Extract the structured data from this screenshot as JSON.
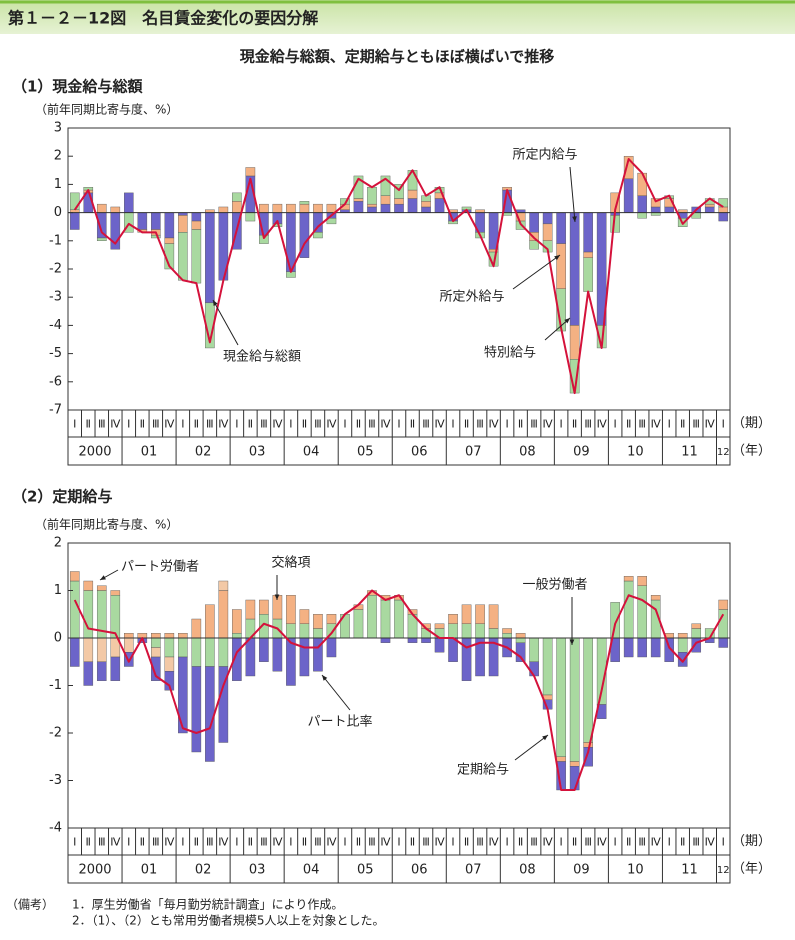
{
  "header": {
    "title": "第１－２－12図　名目賃金変化の要因分解",
    "subtitle": "現金給与総額、定期給与ともほぼ横ばいで推移"
  },
  "chart_data": [
    {
      "type": "bar",
      "stacked": true,
      "title": "（1）現金給与総額",
      "y_label": "（前年同期比寄与度、%）",
      "quarter_unit": "（期）",
      "year_unit": "（年）",
      "categories": [
        "Ⅰ",
        "Ⅱ",
        "Ⅲ",
        "Ⅳ",
        "Ⅰ",
        "Ⅱ",
        "Ⅲ",
        "Ⅳ",
        "Ⅰ",
        "Ⅱ",
        "Ⅲ",
        "Ⅳ",
        "Ⅰ",
        "Ⅱ",
        "Ⅲ",
        "Ⅳ",
        "Ⅰ",
        "Ⅱ",
        "Ⅲ",
        "Ⅳ",
        "Ⅰ",
        "Ⅱ",
        "Ⅲ",
        "Ⅳ",
        "Ⅰ",
        "Ⅱ",
        "Ⅲ",
        "Ⅳ",
        "Ⅰ",
        "Ⅱ",
        "Ⅲ",
        "Ⅳ",
        "Ⅰ",
        "Ⅱ",
        "Ⅲ",
        "Ⅳ",
        "Ⅰ",
        "Ⅱ",
        "Ⅲ",
        "Ⅳ",
        "Ⅰ",
        "Ⅱ",
        "Ⅲ",
        "Ⅳ",
        "Ⅰ",
        "Ⅱ",
        "Ⅲ",
        "Ⅳ",
        "Ⅰ"
      ],
      "years": [
        "2000",
        "01",
        "02",
        "03",
        "04",
        "05",
        "06",
        "07",
        "08",
        "09",
        "10",
        "11",
        "12"
      ],
      "ylim": [
        -7,
        3
      ],
      "yticks": [
        3,
        2,
        1,
        0,
        -1,
        -2,
        -3,
        -4,
        -5,
        -6,
        -7
      ],
      "series": [
        {
          "name": "所定内給与",
          "type": "bar",
          "color": "#6c64c9",
          "values": [
            -0.6,
            0.7,
            -0.9,
            -1.3,
            0.7,
            -0.6,
            -0.6,
            -0.9,
            -0.1,
            -0.3,
            -3.2,
            -2.4,
            -1.3,
            1.3,
            -0.8,
            -0.4,
            -2.1,
            -1.6,
            -0.7,
            -0.2,
            0.1,
            0.4,
            0.2,
            0.3,
            0.3,
            0.5,
            0.2,
            0.5,
            -0.3,
            0.1,
            -0.7,
            -1.3,
            0.8,
            0.1,
            -0.7,
            -0.4,
            -1.1,
            -4.0,
            -1.4,
            -4.0,
            -0.1,
            1.2,
            0.6,
            0.2,
            0.2,
            -0.2,
            0.2,
            0.2,
            -0.3
          ]
        },
        {
          "name": "所定外給与",
          "type": "bar",
          "color": "#f4b183",
          "values": [
            0.1,
            0.1,
            0.3,
            0.2,
            0.0,
            -0.1,
            -0.2,
            -0.2,
            -0.6,
            -0.3,
            0.1,
            0.2,
            0.4,
            0.3,
            0.3,
            0.3,
            0.3,
            0.3,
            0.3,
            0.3,
            0.2,
            0.1,
            0.1,
            0.3,
            0.2,
            0.3,
            0.2,
            0.2,
            0.1,
            0.0,
            0.1,
            -0.1,
            0.1,
            -0.3,
            -0.3,
            -0.6,
            -1.6,
            -1.2,
            -0.2,
            0.0,
            0.7,
            0.8,
            0.8,
            0.3,
            0.3,
            0.1,
            0.0,
            0.1,
            0.2
          ]
        },
        {
          "name": "特別給与",
          "type": "bar",
          "color": "#a9d9a0",
          "values": [
            0.6,
            0.1,
            -0.1,
            0.0,
            -0.7,
            0.0,
            -0.1,
            -0.9,
            -1.7,
            -1.9,
            -1.6,
            0.0,
            0.3,
            -0.3,
            -0.3,
            -0.1,
            -0.2,
            0.1,
            -0.2,
            -0.2,
            0.2,
            0.8,
            0.6,
            0.7,
            0.5,
            0.7,
            0.2,
            0.2,
            -0.1,
            0.1,
            -0.2,
            -0.5,
            -0.1,
            -0.3,
            -0.3,
            -0.4,
            -1.5,
            -1.2,
            -1.2,
            -0.8,
            -0.6,
            0.0,
            -0.2,
            -0.1,
            0.1,
            -0.3,
            -0.2,
            0.2,
            0.3
          ]
        },
        {
          "name": "現金給与総額",
          "type": "line",
          "color": "#d4123b",
          "values": [
            0.1,
            0.8,
            -0.7,
            -1.1,
            -0.4,
            -0.7,
            -0.7,
            -1.9,
            -2.4,
            -2.5,
            -4.6,
            -2.4,
            -0.6,
            1.2,
            -0.9,
            -0.3,
            -2.1,
            -1.1,
            -0.5,
            -0.1,
            0.3,
            1.2,
            0.9,
            1.2,
            0.8,
            1.5,
            0.6,
            0.9,
            -0.3,
            0.1,
            -0.8,
            -1.9,
            0.8,
            -0.4,
            -0.9,
            -1.3,
            -4.1,
            -6.4,
            -2.8,
            -4.8,
            0.1,
            1.9,
            1.4,
            0.4,
            0.6,
            -0.4,
            0.1,
            0.5,
            0.2
          ]
        }
      ]
    },
    {
      "type": "bar",
      "stacked": true,
      "title": "（2）定期給与",
      "y_label": "（前年同期比寄与度、%）",
      "quarter_unit": "（期）",
      "year_unit": "（年）",
      "categories": [
        "Ⅰ",
        "Ⅱ",
        "Ⅲ",
        "Ⅳ",
        "Ⅰ",
        "Ⅱ",
        "Ⅲ",
        "Ⅳ",
        "Ⅰ",
        "Ⅱ",
        "Ⅲ",
        "Ⅳ",
        "Ⅰ",
        "Ⅱ",
        "Ⅲ",
        "Ⅳ",
        "Ⅰ",
        "Ⅱ",
        "Ⅲ",
        "Ⅳ",
        "Ⅰ",
        "Ⅱ",
        "Ⅲ",
        "Ⅳ",
        "Ⅰ",
        "Ⅱ",
        "Ⅲ",
        "Ⅳ",
        "Ⅰ",
        "Ⅱ",
        "Ⅲ",
        "Ⅳ",
        "Ⅰ",
        "Ⅱ",
        "Ⅲ",
        "Ⅳ",
        "Ⅰ",
        "Ⅱ",
        "Ⅲ",
        "Ⅳ",
        "Ⅰ",
        "Ⅱ",
        "Ⅲ",
        "Ⅳ",
        "Ⅰ",
        "Ⅱ",
        "Ⅲ",
        "Ⅳ",
        "Ⅰ"
      ],
      "years": [
        "2000",
        "01",
        "02",
        "03",
        "04",
        "05",
        "06",
        "07",
        "08",
        "09",
        "10",
        "11",
        "12"
      ],
      "ylim": [
        -4,
        2
      ],
      "yticks": [
        2,
        1,
        0,
        -1,
        -2,
        -3,
        -4
      ],
      "series": [
        {
          "name": "一般労働者",
          "type": "bar",
          "color": "#a9d9a0",
          "values": [
            1.2,
            1.0,
            1.0,
            0.9,
            0.0,
            0.0,
            -0.2,
            -0.4,
            -0.4,
            -0.6,
            -0.6,
            -0.6,
            0.1,
            0.4,
            0.5,
            0.4,
            0.3,
            0.3,
            0.2,
            0.3,
            0.5,
            0.6,
            0.9,
            0.8,
            0.8,
            0.5,
            0.2,
            0.2,
            0.3,
            0.3,
            0.3,
            0.2,
            0.1,
            -0.1,
            -0.5,
            -1.2,
            -2.5,
            -2.6,
            -2.2,
            -1.4,
            0.75,
            1.2,
            1.1,
            0.8,
            0.0,
            -0.3,
            0.2,
            0.2,
            0.6
          ]
        },
        {
          "name": "パート労働者",
          "type": "bar",
          "color": "#f4b183",
          "values": [
            0.2,
            0.2,
            0.1,
            0.1,
            0.1,
            0.1,
            0.1,
            0.1,
            0.1,
            0.4,
            0.7,
            1.0,
            0.5,
            0.4,
            0.3,
            0.5,
            0.6,
            0.3,
            0.3,
            0.2,
            0.0,
            0.1,
            0.1,
            0.1,
            0.1,
            0.1,
            0.1,
            0.1,
            0.2,
            0.4,
            0.4,
            0.5,
            0.1,
            0.1,
            0.0,
            -0.1,
            -0.1,
            -0.1,
            -0.1,
            0.0,
            0.0,
            0.1,
            0.2,
            0.1,
            0.1,
            0.1,
            0.1,
            0.0,
            0.2
          ]
        },
        {
          "name": "交絡項",
          "type": "bar",
          "color": "#f3c9a6",
          "values": [
            0.0,
            -0.5,
            -0.5,
            -0.4,
            -0.3,
            0.0,
            -0.2,
            -0.3,
            0.0,
            0.0,
            0.0,
            0.2,
            0.0,
            0.0,
            0.0,
            0.0,
            0.0,
            0.0,
            0.0,
            0.0,
            0.0,
            0.0,
            0.0,
            0.0,
            0.0,
            0.0,
            0.0,
            0.0,
            0.0,
            0.0,
            0.0,
            0.0,
            0.0,
            0.0,
            0.0,
            0.0,
            0.0,
            0.0,
            0.0,
            0.0,
            0.0,
            0.0,
            0.0,
            0.0,
            0.0,
            0.0,
            0.0,
            0.0,
            0.0
          ]
        },
        {
          "name": "パート比率",
          "type": "bar",
          "color": "#6c64c9",
          "values": [
            -0.6,
            -0.5,
            -0.4,
            -0.5,
            -0.3,
            -0.1,
            -0.5,
            -0.4,
            -1.6,
            -1.8,
            -2.0,
            -1.6,
            -0.9,
            -0.8,
            -0.5,
            -0.7,
            -1.0,
            -0.8,
            -0.7,
            -0.4,
            0.0,
            0.0,
            0.0,
            -0.1,
            0.0,
            -0.1,
            -0.1,
            -0.3,
            -0.5,
            -0.9,
            -0.8,
            -0.8,
            -0.4,
            -0.4,
            -0.3,
            -0.2,
            -0.6,
            -0.5,
            -0.4,
            -0.3,
            -0.5,
            -0.4,
            -0.4,
            -0.4,
            -0.5,
            -0.3,
            -0.3,
            -0.1,
            -0.2
          ]
        },
        {
          "name": "定期給与",
          "type": "line",
          "color": "#d4123b",
          "values": [
            0.8,
            0.2,
            0.15,
            0.1,
            -0.5,
            0.0,
            -0.8,
            -1.0,
            -1.9,
            -2.0,
            -1.9,
            -1.0,
            -0.3,
            0.0,
            0.3,
            0.2,
            -0.1,
            -0.2,
            -0.2,
            0.1,
            0.5,
            0.7,
            1.0,
            0.8,
            0.9,
            0.5,
            0.2,
            0.0,
            0.0,
            -0.2,
            -0.1,
            -0.1,
            -0.2,
            -0.4,
            -0.8,
            -1.5,
            -3.2,
            -3.2,
            -2.4,
            -1.1,
            0.3,
            0.9,
            0.8,
            0.6,
            -0.2,
            -0.5,
            -0.1,
            0.0,
            0.5
          ]
        }
      ]
    }
  ],
  "notes": {
    "label": "（備考）",
    "items": [
      "1．厚生労働省「毎月勤労統計調査」により作成。",
      "2．（1）、（2）とも常用労働者規模5人以上を対象とした。"
    ]
  }
}
